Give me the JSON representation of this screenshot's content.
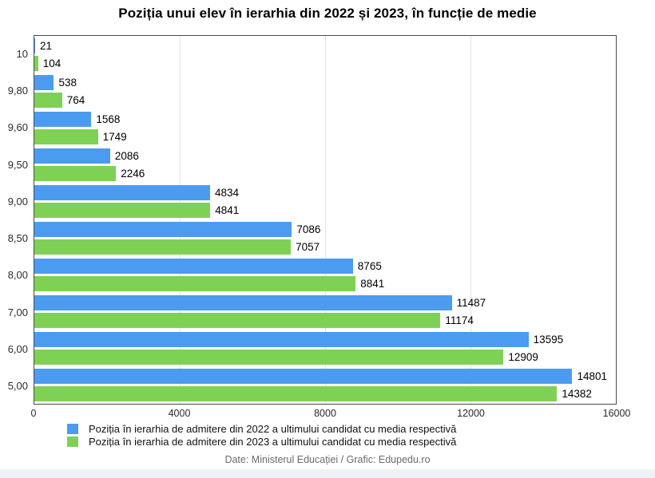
{
  "title": "Poziția unui elev în ierarhia din 2022 și 2023, în funcție de medie",
  "footer": "Date: Ministerul Educației / Grafic: Edupedu.ro",
  "chart_data": {
    "type": "bar",
    "orientation": "horizontal",
    "title": "Poziția unui elev în ierarhia din 2022 și 2023, în funcție de medie",
    "categories": [
      "10",
      "9,80",
      "9,60",
      "9,50",
      "9,00",
      "8,50",
      "8,00",
      "7,00",
      "6,00",
      "5,00"
    ],
    "series": [
      {
        "id": "2022",
        "name": "Poziția în ierarhia de admitere din 2022 a ultimului candidat cu media respectivă",
        "color": "#4b9cf1",
        "values": [
          21,
          538,
          1568,
          2086,
          4834,
          7086,
          8765,
          11487,
          13595,
          14801
        ]
      },
      {
        "id": "2023",
        "name": "Poziția în ierarhia de admitere din 2023 a ultimului candidat cu media respectivă",
        "color": "#7fd156",
        "values": [
          104,
          764,
          1749,
          2246,
          4841,
          7057,
          8841,
          11174,
          12909,
          14382
        ]
      }
    ],
    "xlabel": "",
    "ylabel": "",
    "xlim": [
      0,
      16000
    ],
    "x_ticks": [
      0,
      4000,
      8000,
      12000,
      16000
    ],
    "grid": true,
    "value_labels": true,
    "legend_position": "bottom"
  }
}
